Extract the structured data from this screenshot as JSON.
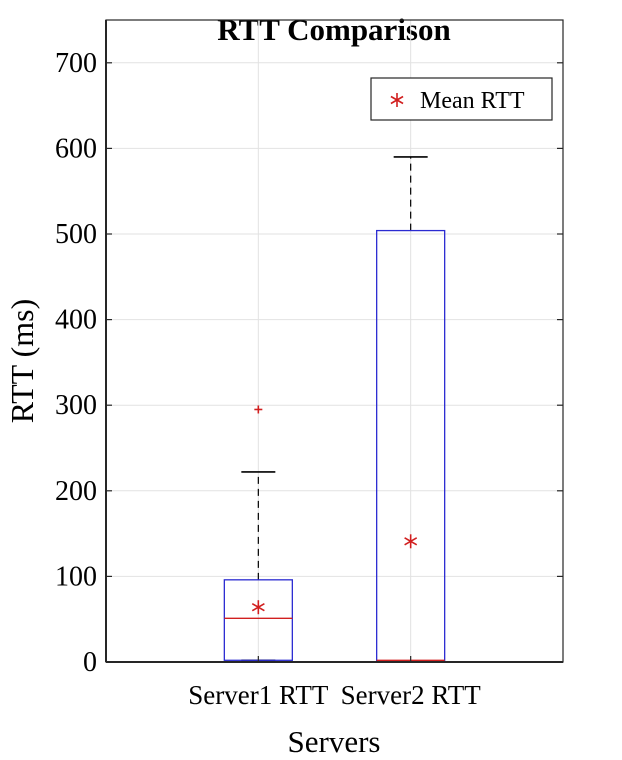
{
  "chart_data": {
    "type": "boxplot",
    "title": "RTT Comparison",
    "xlabel": "Servers",
    "ylabel": "RTT (ms)",
    "categories": [
      "Server1 RTT",
      "Server2 RTT"
    ],
    "ylim": [
      0,
      750
    ],
    "yticks": [
      0,
      100,
      200,
      300,
      400,
      500,
      600,
      700
    ],
    "ytick_labels": [
      "0",
      "100",
      "200",
      "300",
      "400",
      "500",
      "600",
      "700"
    ],
    "grid": true,
    "legend": {
      "position": "top-right",
      "entries": [
        "Mean RTT"
      ]
    },
    "boxes": [
      {
        "name": "Server1 RTT",
        "q1": 2,
        "median": 51,
        "q3": 96,
        "whisker_low": 2,
        "whisker_high": 222,
        "outliers": [
          295
        ],
        "mean": 64
      },
      {
        "name": "Server2 RTT",
        "q1": 1,
        "median": 2,
        "q3": 504,
        "whisker_low": 1,
        "whisker_high": 590,
        "outliers": [],
        "mean": 141
      }
    ],
    "colors": {
      "box": "#2b2bd1",
      "median": "#d11f1f",
      "mean": "#d11f1f",
      "outlier": "#d11f1f",
      "whisker": "#000000",
      "grid": "#e2e2e2",
      "axis": "#262626"
    }
  }
}
